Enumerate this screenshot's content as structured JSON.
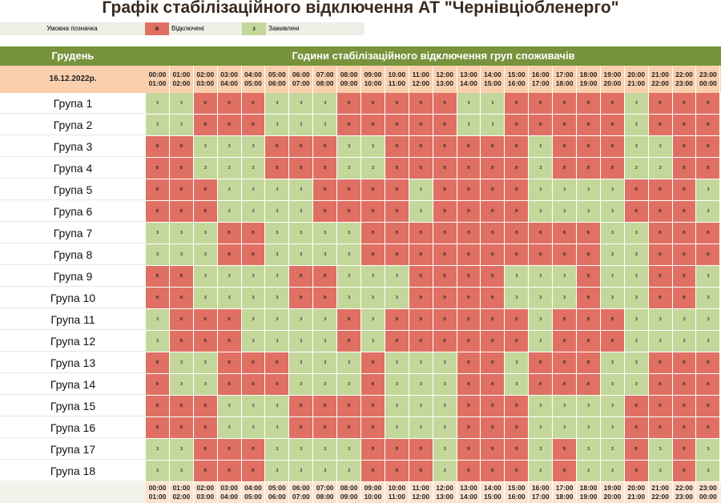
{
  "title": "Графік стабілізаційного відключення АТ \"Чернівціобленерго\"",
  "legend": {
    "label": "Умовна позначка",
    "off_code": "в",
    "off_text": "Відключені",
    "on_code": "з",
    "on_text": "Заживлені",
    "off_color": "#e07063",
    "on_color": "#c4d79b"
  },
  "header": {
    "month": "Грудень",
    "hours_title": "Години стабілізаційного відключення груп споживачів"
  },
  "date": "16.12.2022р.",
  "hours": [
    [
      "00:00",
      "01:00"
    ],
    [
      "01:00",
      "02:00"
    ],
    [
      "02:00",
      "03:00"
    ],
    [
      "03:00",
      "04:00"
    ],
    [
      "04:00",
      "05:00"
    ],
    [
      "05:00",
      "06:00"
    ],
    [
      "06:00",
      "07:00"
    ],
    [
      "07:00",
      "08:00"
    ],
    [
      "08:00",
      "09:00"
    ],
    [
      "09:00",
      "10:00"
    ],
    [
      "10:00",
      "11:00"
    ],
    [
      "11:00",
      "12:00"
    ],
    [
      "12:00",
      "13:00"
    ],
    [
      "13:00",
      "14:00"
    ],
    [
      "14:00",
      "15:00"
    ],
    [
      "15:00",
      "16:00"
    ],
    [
      "16:00",
      "17:00"
    ],
    [
      "17:00",
      "18:00"
    ],
    [
      "18:00",
      "19:00"
    ],
    [
      "19:00",
      "20:00"
    ],
    [
      "20:00",
      "21:00"
    ],
    [
      "21:00",
      "22:00"
    ],
    [
      "22:00",
      "23:00"
    ],
    [
      "23:00",
      "00:00"
    ]
  ],
  "groups": [
    {
      "name": "Група 1",
      "cells": "ззвввзззвввввззвввввзввв"
    },
    {
      "name": "Група 2",
      "cells": "ззвввзззвввввззвввввзввв"
    },
    {
      "name": "Група 3",
      "cells": "ввзззвввззввввввзвввззвв"
    },
    {
      "name": "Група 4",
      "cells": "ввзззвввззввввввзвввззвв"
    },
    {
      "name": "Група 5",
      "cells": "вввззззввввзввввззззвввз"
    },
    {
      "name": "Група 6",
      "cells": "вввззззввввзввввззззвввз"
    },
    {
      "name": "Група 7",
      "cells": "зззввззззввввввввввззввв"
    },
    {
      "name": "Група 8",
      "cells": "зззввззззввввввввввззввв"
    },
    {
      "name": "Група 9",
      "cells": "ввззззввзззввввзззвззввз"
    },
    {
      "name": "Група 10",
      "cells": "ввззззввзззввввзззвззввз"
    },
    {
      "name": "Група 11",
      "cells": "звввззззвзввввввзвввзззз"
    },
    {
      "name": "Група 12",
      "cells": "звввззззвзввввввзвввзззз"
    },
    {
      "name": "Група 13",
      "cells": "вззвввзззвзззввзвввззввв"
    },
    {
      "name": "Група 14",
      "cells": "вззвввзззвзззввзвввззввв"
    },
    {
      "name": "Група 15",
      "cells": "вввзззввввзззвввззззвввв"
    },
    {
      "name": "Група 16",
      "cells": "вввзззввввзззвввззззвввв"
    },
    {
      "name": "Група 17",
      "cells": "ззвввззззвввзвввзвззвзвз"
    },
    {
      "name": "Група 18",
      "cells": "ззвввззззвввзвввзвззвзвз"
    }
  ]
}
